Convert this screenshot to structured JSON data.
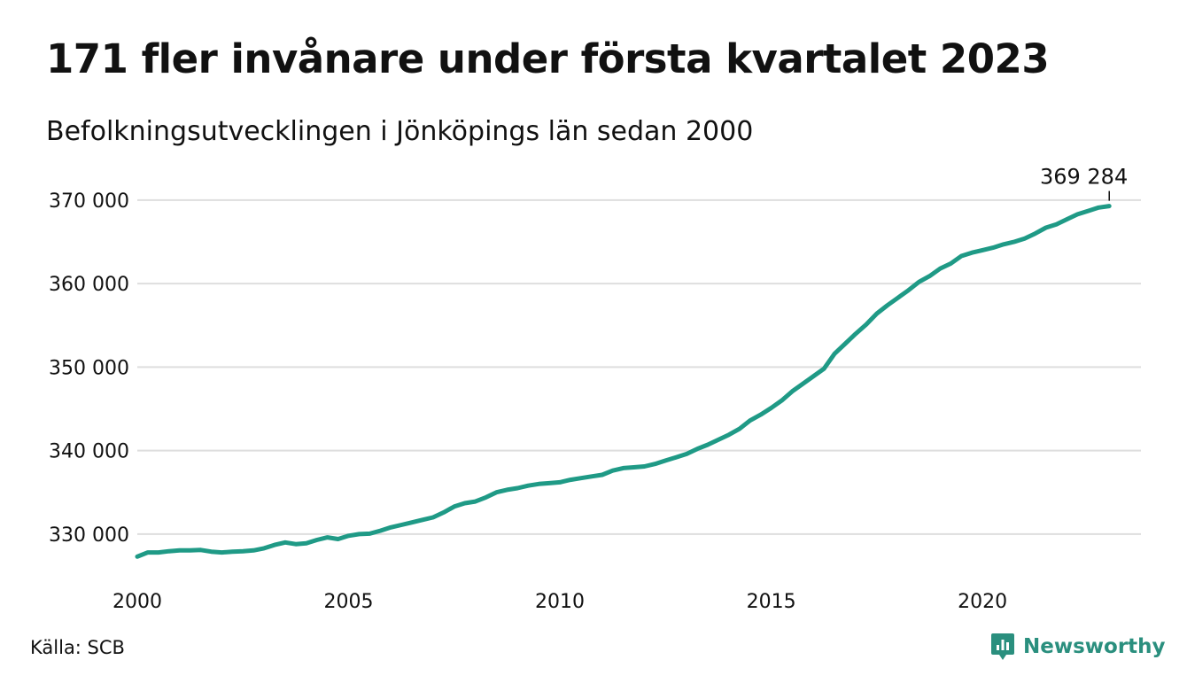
{
  "title": "171 fler invånare under första kvartalet 2023",
  "subtitle": "Befolkningsutvecklingen i Jönköpings län sedan 2000",
  "source": "Källa: SCB",
  "brand": {
    "name": "Newsworthy",
    "icon": "newsworthy-logo-icon",
    "color": "#2a8f7e"
  },
  "colors": {
    "line": "#1f9a86",
    "grid": "#dedede",
    "text": "#111111"
  },
  "chart_data": {
    "type": "line",
    "title": "171 fler invånare under första kvartalet 2023",
    "subtitle": "Befolkningsutvecklingen i Jönköpings län sedan 2000",
    "xlabel": "",
    "ylabel": "",
    "xlim": [
      2000,
      2023.75
    ],
    "ylim": [
      325000,
      372000
    ],
    "yticks": [
      330000,
      340000,
      350000,
      360000,
      370000
    ],
    "ytick_labels": [
      "330 000",
      "340 000",
      "350 000",
      "360 000",
      "370 000"
    ],
    "xticks": [
      2000,
      2005,
      2010,
      2015,
      2020
    ],
    "xtick_labels": [
      "2000",
      "2005",
      "2010",
      "2015",
      "2020"
    ],
    "grid": true,
    "legend": "none",
    "annotation": {
      "x": 2023,
      "y": 369284,
      "label": "369 284"
    },
    "series": [
      {
        "x": [
          2000,
          2000.25,
          2000.5,
          2000.75,
          2001,
          2001.25,
          2001.5,
          2001.75,
          2002,
          2002.25,
          2002.5,
          2002.75,
          2003,
          2003.25,
          2003.5,
          2003.75,
          2004,
          2004.25,
          2004.5,
          2004.75,
          2005,
          2005.25,
          2005.5,
          2005.75,
          2006,
          2006.25,
          2006.5,
          2006.75,
          2007,
          2007.25,
          2007.5,
          2007.75,
          2008,
          2008.25,
          2008.5,
          2008.75,
          2009,
          2009.25,
          2009.5,
          2009.75,
          2010,
          2010.25,
          2010.5,
          2010.75,
          2011,
          2011.25,
          2011.5,
          2011.75,
          2012,
          2012.25,
          2012.5,
          2012.75,
          2013,
          2013.25,
          2013.5,
          2013.75,
          2014,
          2014.25,
          2014.5,
          2014.75,
          2015,
          2015.25,
          2015.5,
          2015.75,
          2016,
          2016.25,
          2016.5,
          2016.75,
          2017,
          2017.25,
          2017.5,
          2017.75,
          2018,
          2018.25,
          2018.5,
          2018.75,
          2019,
          2019.25,
          2019.5,
          2019.75,
          2020,
          2020.25,
          2020.5,
          2020.75,
          2021,
          2021.25,
          2021.5,
          2021.75,
          2022,
          2022.25,
          2022.5,
          2022.75,
          2023
        ],
        "y": [
          327300,
          327800,
          327800,
          327950,
          328050,
          328050,
          328100,
          327900,
          327800,
          327900,
          327950,
          328050,
          328300,
          328700,
          329000,
          328800,
          328900,
          329300,
          329600,
          329400,
          329800,
          330000,
          330050,
          330400,
          330800,
          331100,
          331400,
          331700,
          332000,
          332600,
          333300,
          333700,
          333900,
          334400,
          335000,
          335300,
          335500,
          335800,
          336000,
          336100,
          336200,
          336500,
          336700,
          336900,
          337100,
          337600,
          337900,
          338000,
          338100,
          338400,
          338800,
          339200,
          339600,
          340200,
          340700,
          341300,
          341900,
          342600,
          343600,
          344300,
          345100,
          346000,
          347100,
          348000,
          348900,
          349800,
          351600,
          352800,
          354000,
          355100,
          356400,
          357400,
          358300,
          359200,
          360200,
          360900,
          361800,
          362400,
          363300,
          363700,
          364000,
          364300,
          364700,
          365000,
          365400,
          366000,
          366700,
          367100,
          367700,
          368300,
          368700,
          369100,
          369284
        ]
      }
    ]
  }
}
